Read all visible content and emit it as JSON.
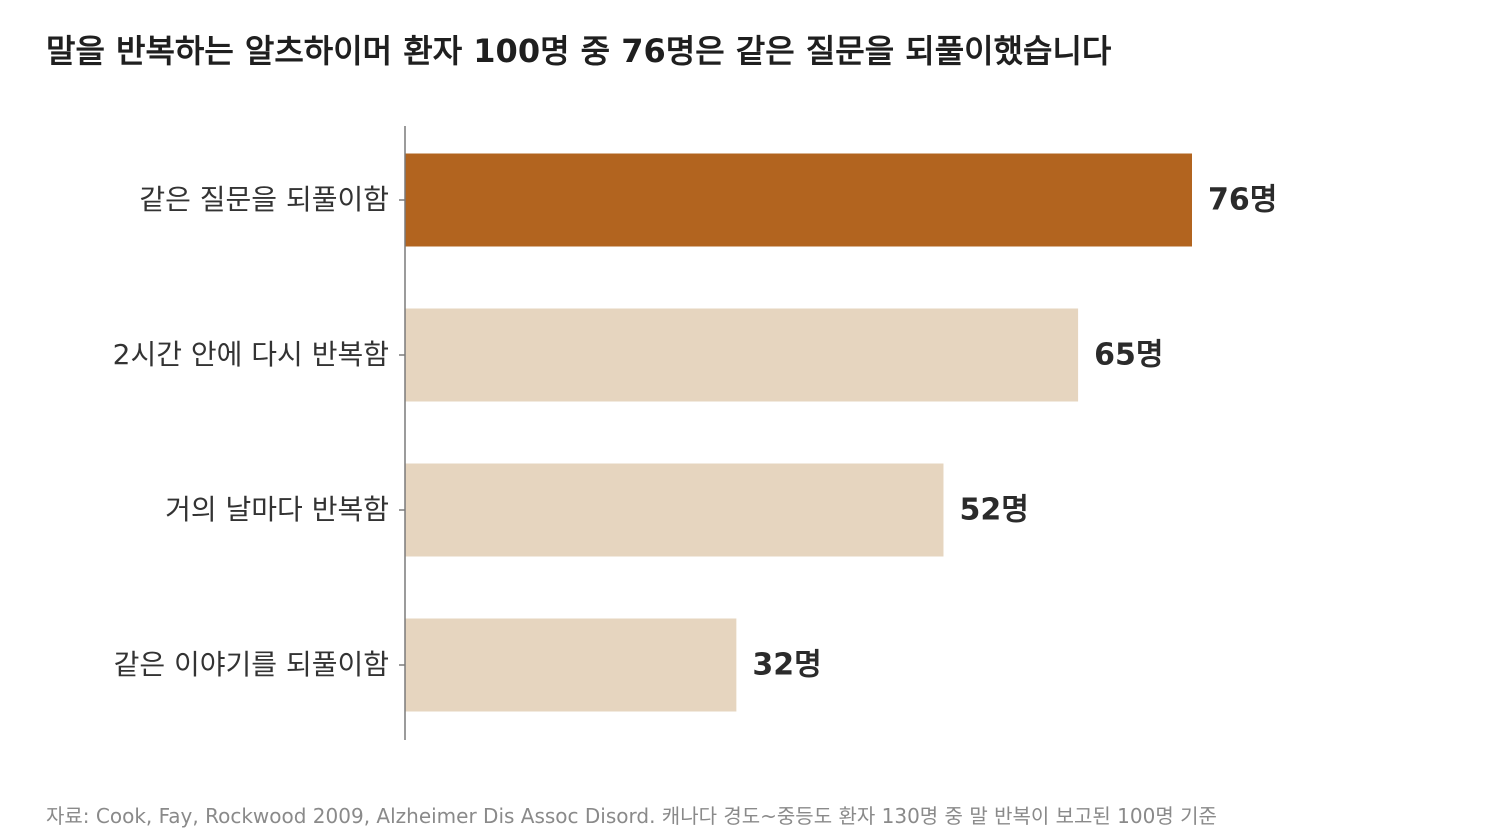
{
  "title": "말을 반복하는 알츠하이머 환자 100명 중 76명은 같은 질문을 되풀이했습니다",
  "source": "자료: Cook, Fay, Rockwood 2009, Alzheimer Dis Assoc Disord. 캐나다 경도~중등도 환자 130명 중 말 반복이 보고된 100명 기준",
  "colors": {
    "highlight": "#b2641f",
    "muted": "#e6d5bf",
    "axis": "#7a7a7a",
    "label": "#333333",
    "value": "#2b2b2b"
  },
  "chart_data": {
    "type": "bar",
    "orientation": "horizontal",
    "categories": [
      "같은 질문을 되풀이함",
      "2시간 안에 다시 반복함",
      "거의 날마다 반복함",
      "같은 이야기를 되풀이함"
    ],
    "values": [
      76,
      65,
      52,
      32
    ],
    "value_labels": [
      "76명",
      "65명",
      "52명",
      "32명"
    ],
    "highlight_index": 0,
    "unit": "명",
    "xlim": [
      0,
      100
    ],
    "grid": false,
    "legend": "none"
  }
}
